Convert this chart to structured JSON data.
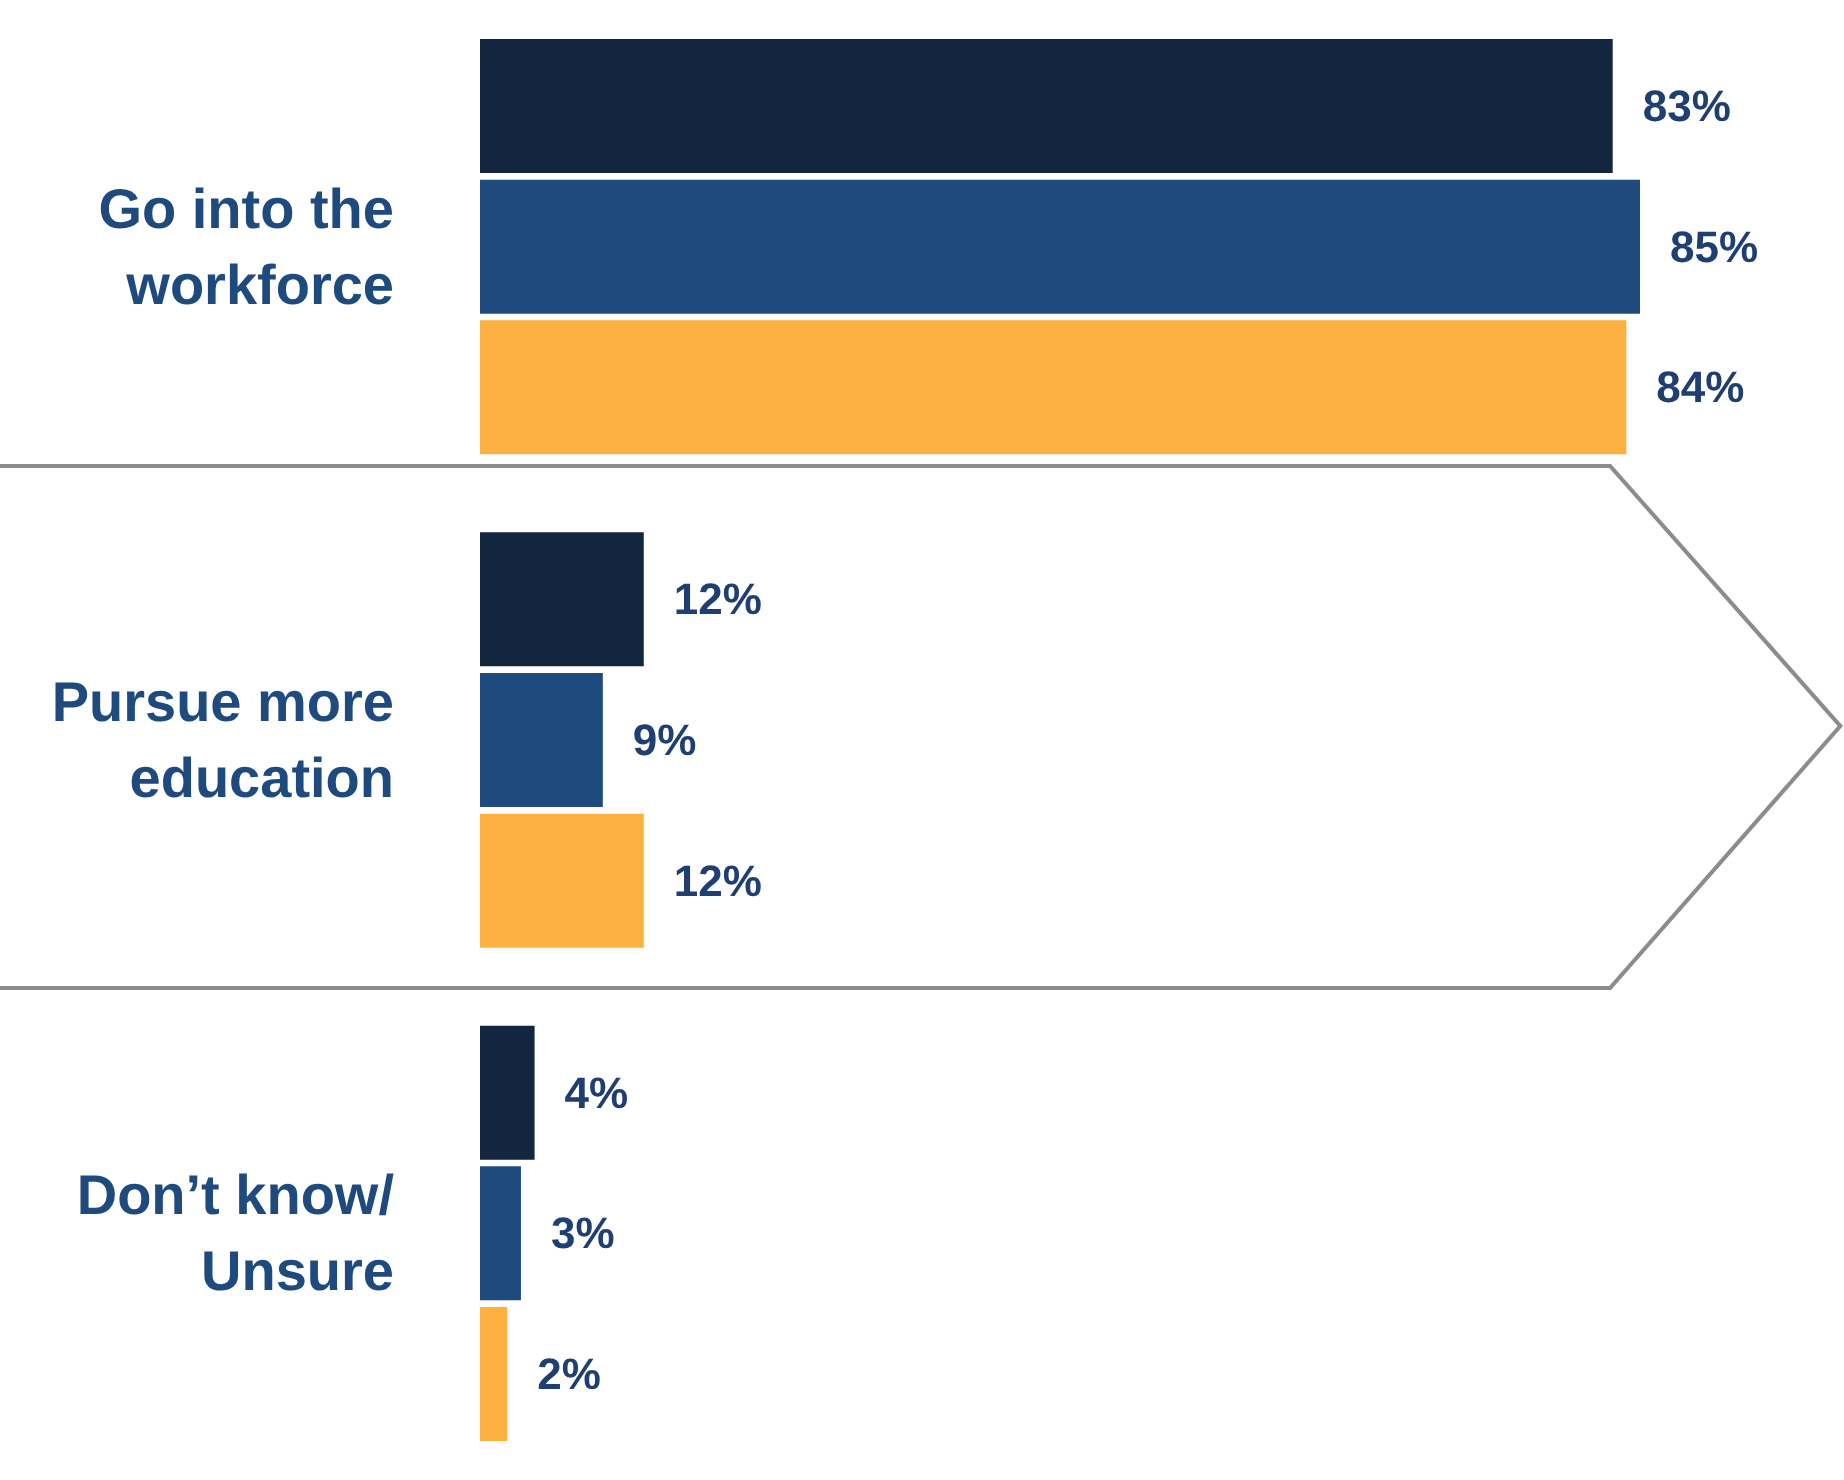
{
  "chart_data": {
    "type": "bar",
    "orientation": "horizontal",
    "categories": [
      "Go into the\nworkforce",
      "Pursue more\neducation",
      "Don’t know/\nUnsure"
    ],
    "series": [
      {
        "color": "#13263f",
        "values": [
          83,
          12,
          4
        ],
        "value_labels": [
          "83%",
          "12%",
          "4%"
        ]
      },
      {
        "color": "#1f4a7e",
        "values": [
          85,
          9,
          3
        ],
        "value_labels": [
          "85%",
          "9%",
          "3%"
        ]
      },
      {
        "color": "#fbb040",
        "values": [
          84,
          12,
          2
        ],
        "value_labels": [
          "84%",
          "12%",
          "2%"
        ]
      }
    ]
  }
}
